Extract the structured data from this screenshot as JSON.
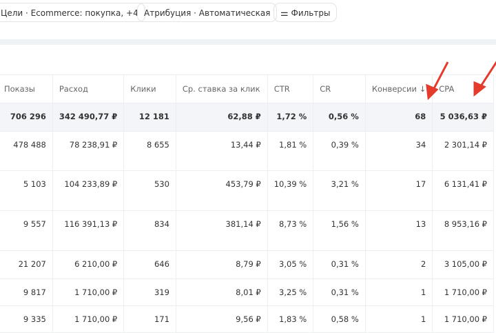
{
  "filters": {
    "goals": "Цели · Ecommerce: покупка, +4",
    "attribution": "Атрибуция · Автоматическая",
    "filters_button": "Фильтры"
  },
  "columns": [
    "Показы",
    "Расход",
    "Клики",
    "Ср. ставка за клик",
    "CTR",
    "CR",
    "Конверсии ↓",
    "CPA"
  ],
  "summary": [
    "706 296",
    "342 490,77 ₽",
    "12 181",
    "62,88 ₽",
    "1,72 %",
    "0,56 %",
    "68",
    "5 036,63 ₽"
  ],
  "rows": [
    [
      "478 488",
      "78 238,91 ₽",
      "8 655",
      "13,44 ₽",
      "1,81 %",
      "0,39 %",
      "34",
      "2 301,14 ₽"
    ],
    [
      "5 103",
      "104 233,89 ₽",
      "530",
      "453,79 ₽",
      "10,39 %",
      "3,21 %",
      "17",
      "6 131,41 ₽"
    ],
    [
      "9 557",
      "116 391,13 ₽",
      "834",
      "381,14 ₽",
      "8,73 %",
      "1,56 %",
      "13",
      "8 953,16 ₽"
    ],
    [
      "21 207",
      "6 210,00 ₽",
      "646",
      "8,79 ₽",
      "3,05 %",
      "0,31 %",
      "2",
      "3 105,00 ₽"
    ],
    [
      "9 817",
      "1 710,00 ₽",
      "319",
      "8,01 ₽",
      "3,25 %",
      "0,31 %",
      "1",
      "1 710,00 ₽"
    ],
    [
      "9 335",
      "1 710,00 ₽",
      "171",
      "9,56 ₽",
      "1,83 %",
      "0,58 %",
      "1",
      "1 710,00 ₽"
    ]
  ],
  "colors": {
    "arrow": "#e53b2c"
  }
}
